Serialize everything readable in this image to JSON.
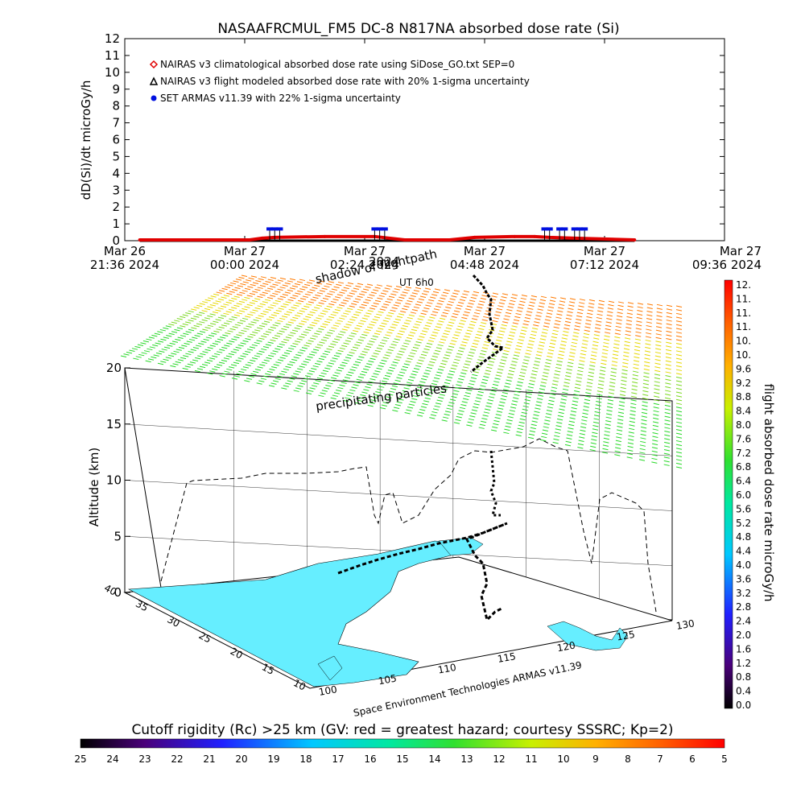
{
  "chart_data": [
    {
      "type": "scatter",
      "title": "NASAAFRCMUL_FM5 DC-8   N817NA absorbed dose rate (Si)",
      "ylabel": "dD(Si)/dt microGy/h",
      "ylim": [
        0,
        12
      ],
      "yticks": [
        "0",
        "1",
        "2",
        "3",
        "4",
        "5",
        "6",
        "7",
        "8",
        "9",
        "10",
        "11",
        "12"
      ],
      "xticks": [
        {
          "line1": "Mar 26",
          "line2": "21:36  2024"
        },
        {
          "line1": "Mar 27",
          "line2": "00:00  2024"
        },
        {
          "line1": "Mar 27",
          "line2": "02:24  2024"
        },
        {
          "line1": "Mar 27",
          "line2": "04:48  2024"
        },
        {
          "line1": "Mar 27",
          "line2": "07:12  2024"
        },
        {
          "line1": "Mar 27",
          "line2": "09:36  2024"
        }
      ],
      "xlim_hours": [
        0,
        12
      ],
      "legend": [
        {
          "marker": "diamond",
          "color": "#e00000",
          "label": "NAIRAS v3 climatological absorbed dose rate using SiDose_GO.txt SEP=0"
        },
        {
          "marker": "triangle",
          "color": "#000000",
          "label": "NAIRAS v3 flight modeled absorbed dose rate with 20% 1-sigma uncertainty"
        },
        {
          "marker": "circle",
          "color": "#0010e0",
          "label": "SET ARMAS v11.39 with 22% 1-sigma uncertainty"
        }
      ],
      "series": [
        {
          "name": "NAIRAS v3 climatological absorbed dose rate using SiDose_GO.txt SEP=0",
          "color": "#e00000",
          "x_hours": [
            0.3,
            1.5,
            2.5,
            2.75,
            3.0,
            4.0,
            5.0,
            5.6,
            5.8,
            6.5,
            7.0,
            7.8,
            8.2,
            8.5,
            9.0,
            10.2
          ],
          "y": [
            0.0,
            0.0,
            0.0,
            0.1,
            0.15,
            0.2,
            0.2,
            0.0,
            0.0,
            0.0,
            0.15,
            0.2,
            0.2,
            0.15,
            0.1,
            0.0
          ]
        },
        {
          "name": "NAIRAS v3 flight modeled absorbed dose rate with 20% 1-sigma uncertainty",
          "color": "#000000",
          "x_hours": [
            0.3,
            2.0,
            4.0,
            6.0,
            8.0,
            10.2
          ],
          "y": [
            0.0,
            0.0,
            0.0,
            0.0,
            0.0,
            0.0
          ]
        },
        {
          "name": "SET ARMAS v11.39 with 22% 1-sigma uncertainty",
          "color": "#0010e0",
          "x_hours": [
            2.9,
            3.0,
            3.1,
            5.0,
            5.1,
            5.2,
            8.4,
            8.5,
            8.7,
            8.8,
            9.0,
            9.1,
            9.2
          ],
          "y": [
            0.65,
            0.65,
            0.65,
            0.65,
            0.65,
            0.65,
            0.65,
            0.65,
            0.65,
            0.65,
            0.65,
            0.65,
            0.65
          ]
        }
      ]
    },
    {
      "type": "3d-map",
      "zlabel": "Altitude (km)",
      "zticks": [
        "0",
        "5",
        "10",
        "15",
        "20"
      ],
      "lat_ticks": [
        "40",
        "35",
        "30",
        "25",
        "20",
        "15",
        "10"
      ],
      "lon_ticks": [
        "100",
        "105",
        "110",
        "115",
        "120",
        "125",
        "130"
      ],
      "annotations": [
        "shadow of flightpath",
        "UT 6h0",
        "precipitating particles"
      ],
      "overlay_texts": [
        "2024",
        "2024"
      ],
      "credit": "Space Environment Technologies ARMAS v11.39",
      "dose_colorbar": {
        "label": "flight absorbed dose rate microGy/h",
        "ticks": [
          "12.",
          "11.",
          "11.",
          "11.",
          "10.",
          "10.",
          "9.6",
          "9.2",
          "8.8",
          "8.4",
          "8.0",
          "7.6",
          "7.2",
          "6.8",
          "6.4",
          "6.0",
          "5.6",
          "5.2",
          "4.8",
          "4.4",
          "4.0",
          "3.6",
          "3.2",
          "2.8",
          "2.4",
          "2.0",
          "1.6",
          "1.2",
          "0.8",
          "0.4",
          "0.0"
        ]
      },
      "rigidity_colorbar": {
        "label": "Cutoff rigidity (Rc) >25 km (GV: red = greatest hazard; courtesy SSSRC; Kp=2)",
        "ticks": [
          "25",
          "24",
          "23",
          "22",
          "21",
          "20",
          "19",
          "18",
          "17",
          "16",
          "15",
          "14",
          "13",
          "12",
          "11",
          "10",
          "9",
          "8",
          "7",
          "6",
          "5"
        ]
      },
      "colors": {
        "land": "#66eeff",
        "track": "#000000",
        "dashed_profile": "#000000"
      }
    }
  ]
}
